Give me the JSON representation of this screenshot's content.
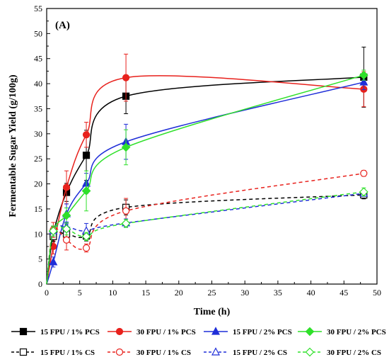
{
  "chart_data": {
    "type": "line",
    "panel_label": "(A)",
    "xlabel": "Time (h)",
    "ylabel": "Fermentable Sugar Yield (g/100g)",
    "xlim": [
      0,
      50
    ],
    "ylim": [
      0,
      55
    ],
    "x_ticks": [
      0,
      5,
      10,
      15,
      20,
      25,
      30,
      35,
      40,
      45,
      50
    ],
    "y_ticks": [
      0,
      5,
      10,
      15,
      20,
      25,
      30,
      35,
      40,
      45,
      50,
      55
    ],
    "grid": false,
    "legend_position": "bottom",
    "x": [
      0,
      1,
      3,
      6,
      12,
      48
    ],
    "series": [
      {
        "name": "15 FPU / 1% PCS",
        "values": [
          0,
          10,
          18.3,
          25.7,
          37.5,
          41.3
        ],
        "errors": [
          0,
          1.5,
          1.8,
          5.0,
          3.5,
          6.0
        ],
        "color": "#000000",
        "marker": "square",
        "filled": true,
        "dashed": false
      },
      {
        "name": "30 FPU / 1% PCS",
        "values": [
          0,
          7.5,
          19.3,
          29.8,
          41.2,
          38.9
        ],
        "errors": [
          0,
          1.5,
          3.3,
          2.5,
          4.7,
          3.5
        ],
        "color": "#e8211c",
        "marker": "circle",
        "filled": true,
        "dashed": false
      },
      {
        "name": "15 FPU / 2% PCS",
        "values": [
          0,
          4.4,
          14.0,
          20.1,
          28.4,
          40.3
        ],
        "errors": [
          0,
          1.0,
          2.0,
          2.0,
          3.5,
          1.5
        ],
        "color": "#1f2ed8",
        "marker": "triangle",
        "filled": true,
        "dashed": false
      },
      {
        "name": "30 FPU / 2% PCS",
        "values": [
          0,
          10.5,
          13.7,
          18.6,
          27.3,
          41.7
        ],
        "errors": [
          0,
          1.0,
          1.5,
          4.0,
          3.5,
          1.0
        ],
        "color": "#2fe02a",
        "marker": "diamond",
        "filled": true,
        "dashed": false
      },
      {
        "name": "15 FPU / 1% CS",
        "values": [
          0,
          9.5,
          10.0,
          9.6,
          15.3,
          17.8
        ],
        "errors": [
          0,
          1.0,
          1.0,
          1.0,
          1.5,
          0.8
        ],
        "color": "#000000",
        "marker": "square",
        "filled": false,
        "dashed": true
      },
      {
        "name": "30 FPU / 1% CS",
        "values": [
          0,
          10.8,
          8.8,
          7.2,
          14.6,
          22.1
        ],
        "errors": [
          0,
          1.5,
          2.0,
          0.8,
          2.5,
          0.6
        ],
        "color": "#e8211c",
        "marker": "circle",
        "filled": false,
        "dashed": true
      },
      {
        "name": "15 FPU / 2% CS",
        "values": [
          0,
          10.6,
          11.4,
          10.6,
          12.2,
          18.1
        ],
        "errors": [
          0,
          1.0,
          1.0,
          1.5,
          0.8,
          0.5
        ],
        "color": "#1f2ed8",
        "marker": "triangle",
        "filled": false,
        "dashed": true
      },
      {
        "name": "30 FPU / 2% CS",
        "values": [
          0,
          10.6,
          11.0,
          9.5,
          12.1,
          18.4
        ],
        "errors": [
          0,
          1.0,
          1.2,
          0.8,
          0.8,
          0.8
        ],
        "color": "#2fe02a",
        "marker": "diamond",
        "filled": false,
        "dashed": true
      }
    ]
  }
}
